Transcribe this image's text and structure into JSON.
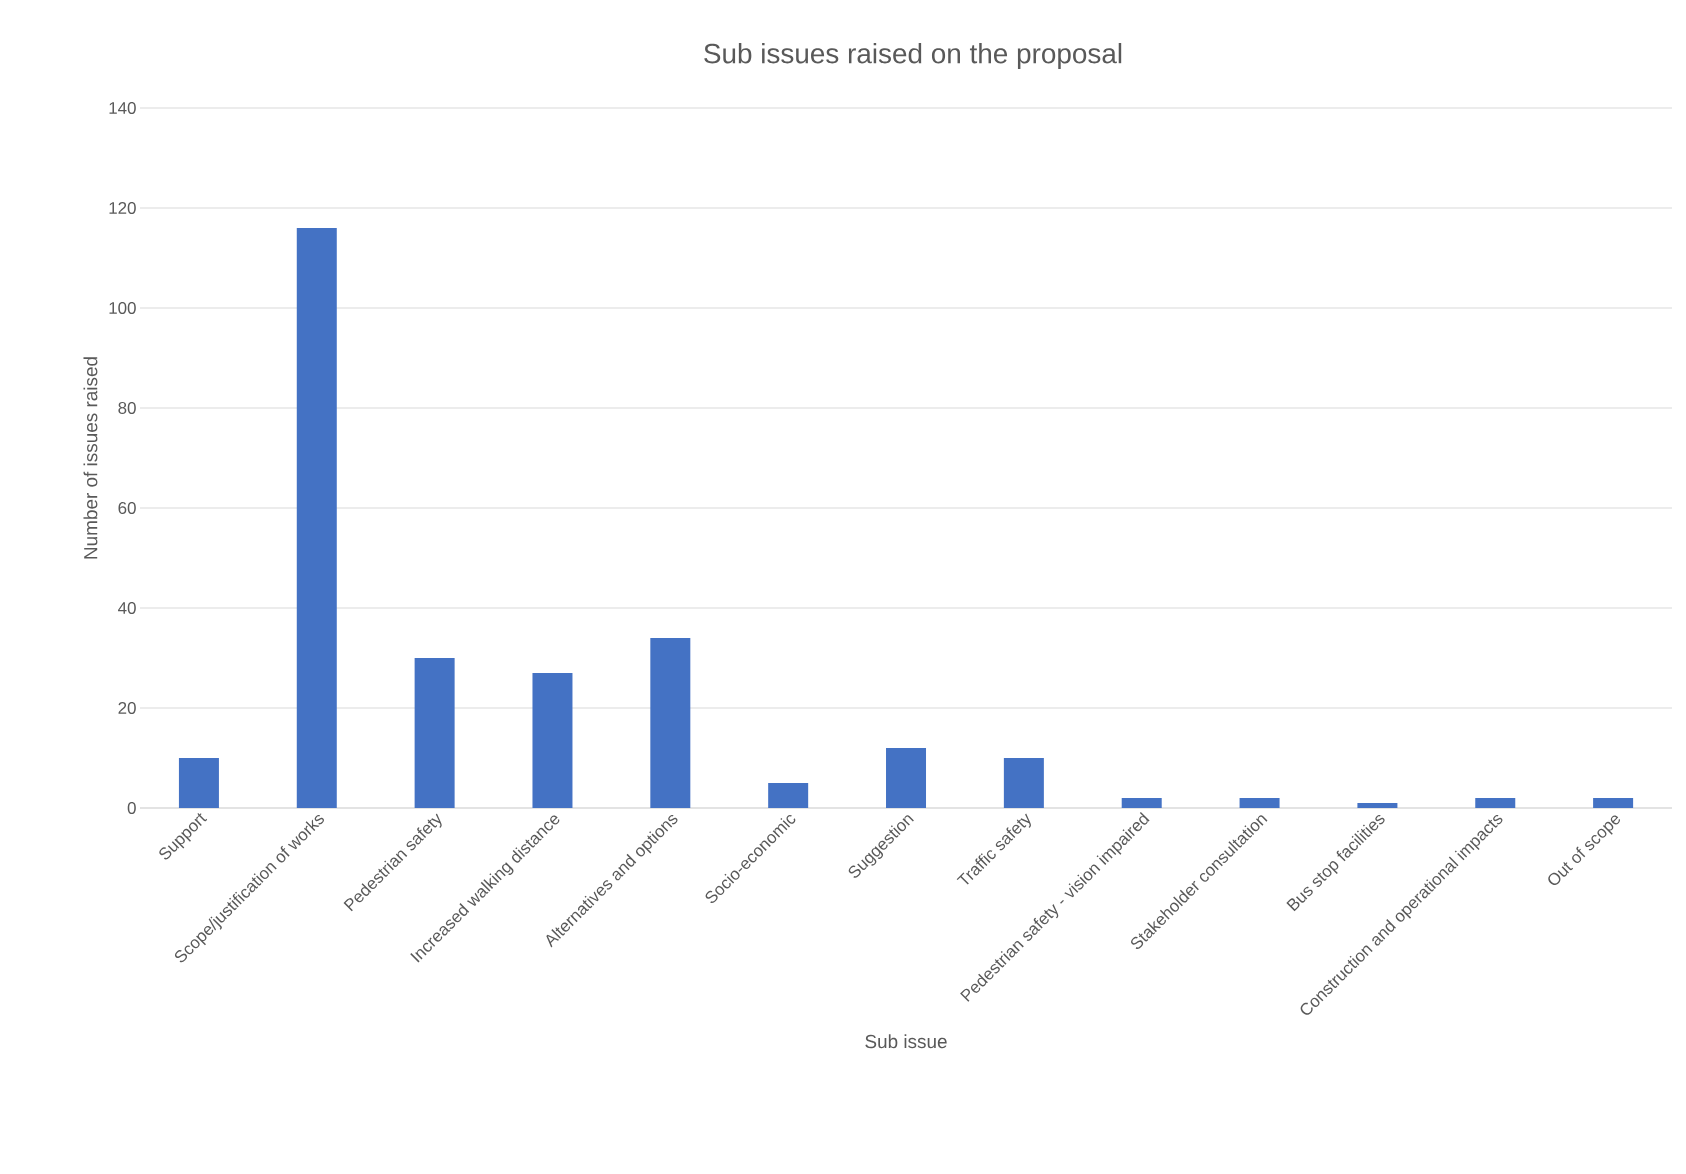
{
  "chart_data": {
    "type": "bar",
    "title": "Sub issues raised on the proposal",
    "xlabel": "Sub issue",
    "ylabel": "Number of issues raised",
    "categories": [
      "Support",
      "Scope/justification of works",
      "Pedestrian safety",
      "Increased walking distance",
      "Alternatives and options",
      "Socio-economic",
      "Suggestion",
      "Traffic safety",
      "Pedestrian safety - vision impaired",
      "Stakeholder consultation",
      "Bus stop facilities",
      "Construction and operational impacts",
      "Out of scope"
    ],
    "values": [
      10,
      116,
      30,
      27,
      34,
      5,
      12,
      10,
      2,
      2,
      1,
      2,
      2
    ],
    "color": "#4472c4",
    "ylim": [
      0,
      140
    ],
    "yticks": [
      0,
      20,
      40,
      60,
      80,
      100,
      120,
      140
    ],
    "grid": "y"
  }
}
